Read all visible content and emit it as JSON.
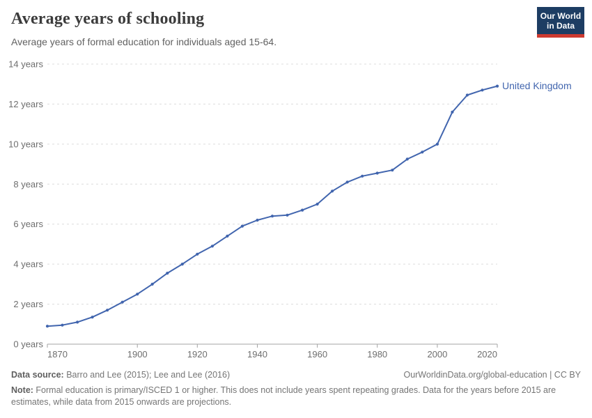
{
  "header": {
    "title": "Average years of schooling",
    "subtitle": "Average years of formal education for individuals aged 15-64."
  },
  "logo": {
    "line1": "Our World",
    "line2": "in Data",
    "bg_color": "#1d3d63",
    "accent_color": "#cd3a30"
  },
  "chart_data": {
    "type": "line",
    "title": "Average years of schooling",
    "xlabel": "",
    "ylabel": "",
    "xlim": [
      1870,
      2020
    ],
    "ylim": [
      0,
      14
    ],
    "x_ticks": [
      1870,
      1900,
      1920,
      1940,
      1960,
      1980,
      2000,
      2020
    ],
    "y_ticks": [
      0,
      2,
      4,
      6,
      8,
      10,
      12,
      14
    ],
    "y_tick_suffix": " years",
    "grid": true,
    "legend_position": "end-of-line",
    "series": [
      {
        "name": "United Kingdom",
        "color": "#4165ae",
        "x": [
          1870,
          1875,
          1880,
          1885,
          1890,
          1895,
          1900,
          1905,
          1910,
          1915,
          1920,
          1925,
          1930,
          1935,
          1940,
          1945,
          1950,
          1955,
          1960,
          1965,
          1970,
          1975,
          1980,
          1985,
          1990,
          1995,
          2000,
          2005,
          2010,
          2015,
          2020
        ],
        "values": [
          0.9,
          0.95,
          1.1,
          1.35,
          1.7,
          2.1,
          2.5,
          3.0,
          3.55,
          4.0,
          4.5,
          4.9,
          5.4,
          5.9,
          6.2,
          6.4,
          6.45,
          6.7,
          7.0,
          7.65,
          8.1,
          8.4,
          8.55,
          8.7,
          9.25,
          9.6,
          10.0,
          11.6,
          12.45,
          12.7,
          12.9
        ]
      }
    ],
    "colors": {
      "grid": "#dcdcdc",
      "axis": "#a3a3a3",
      "tick_text": "#6e6e6e"
    }
  },
  "footer": {
    "source_label": "Data source:",
    "source_text": " Barro and Lee (2015); Lee and Lee (2016)",
    "link": "OurWorldinData.org/global-education | CC BY",
    "note_label": "Note:",
    "note_text": " Formal education is primary/ISCED 1 or higher. This does not include years spent repeating grades. Data for the years before 2015 are estimates, while data from 2015 onwards are projections."
  }
}
